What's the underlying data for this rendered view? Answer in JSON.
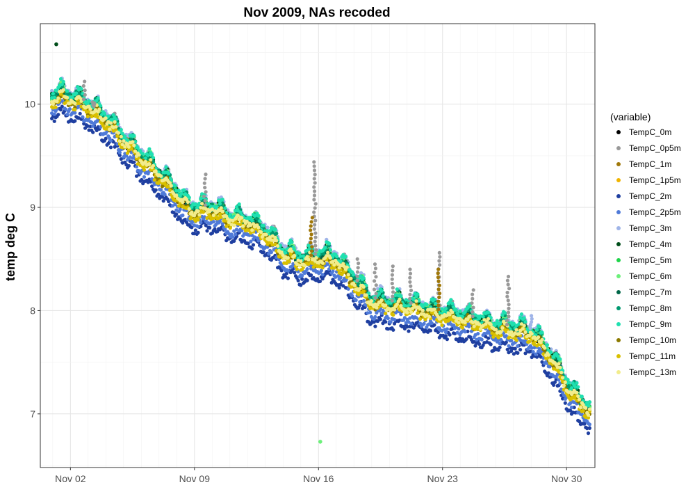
{
  "chart_data": {
    "type": "scatter",
    "title": "Nov 2009, NAs recoded",
    "xlabel": "",
    "ylabel": "temp deg C",
    "x_tick_labels": [
      "Nov 02",
      "Nov 09",
      "Nov 16",
      "Nov 23",
      "Nov 30"
    ],
    "x_tick_days": [
      2,
      9,
      16,
      23,
      30
    ],
    "xlim_days": [
      0.3,
      31.6
    ],
    "ylim": [
      6.48,
      10.78
    ],
    "y_ticks": [
      7,
      8,
      9,
      10
    ],
    "grid": true,
    "legend": {
      "title": "(variable)",
      "placement": "right"
    },
    "trend": {
      "days": [
        1.0,
        1.5,
        2.0,
        2.7,
        3.3,
        4.0,
        5.0,
        6.0,
        7.0,
        8.0,
        8.5,
        9.0,
        10.0,
        11.0,
        12.0,
        13.0,
        14.0,
        15.0,
        15.5,
        16.0,
        16.5,
        17.0,
        18.0,
        19.0,
        20.0,
        21.0,
        22.0,
        22.5,
        23.0,
        24.0,
        25.0,
        26.0,
        27.0,
        28.0,
        29.0,
        30.0,
        30.5,
        31.3
      ],
      "temp": [
        10.02,
        10.05,
        10.02,
        9.98,
        9.9,
        9.82,
        9.62,
        9.45,
        9.28,
        9.1,
        8.98,
        8.93,
        8.95,
        8.85,
        8.82,
        8.72,
        8.52,
        8.45,
        8.45,
        8.48,
        8.48,
        8.45,
        8.25,
        8.05,
        8.02,
        8.0,
        7.97,
        7.95,
        7.92,
        7.9,
        7.85,
        7.8,
        7.78,
        7.75,
        7.55,
        7.25,
        7.12,
        7.0
      ]
    },
    "series": [
      {
        "name": "TempC_0m",
        "color": "#000000",
        "offset": 0.02
      },
      {
        "name": "TempC_0p5m",
        "color": "#999999",
        "offset": 0.06
      },
      {
        "name": "TempC_1m",
        "color": "#a0780a",
        "offset": 0.04
      },
      {
        "name": "TempC_1p5m",
        "color": "#f0b400",
        "offset": 0.02
      },
      {
        "name": "TempC_2m",
        "color": "#1f3fa0",
        "offset": -0.17
      },
      {
        "name": "TempC_2p5m",
        "color": "#4f7ad8",
        "offset": -0.1
      },
      {
        "name": "TempC_3m",
        "color": "#9fb4e8",
        "offset": 0.08
      },
      {
        "name": "TempC_4m",
        "color": "#004d1a",
        "offset": 0.05
      },
      {
        "name": "TempC_5m",
        "color": "#1fd44a",
        "offset": 0.04
      },
      {
        "name": "TempC_6m",
        "color": "#6cf07a",
        "offset": 0.05
      },
      {
        "name": "TempC_7m",
        "color": "#006648",
        "offset": 0.03
      },
      {
        "name": "TempC_8m",
        "color": "#009970",
        "offset": 0.05
      },
      {
        "name": "TempC_9m",
        "color": "#1fe0b0",
        "offset": 0.07
      },
      {
        "name": "TempC_10m",
        "color": "#8c7a00",
        "offset": -0.01
      },
      {
        "name": "TempC_11m",
        "color": "#d9c000",
        "offset": -0.03
      },
      {
        "name": "TempC_13m",
        "color": "#f2ec8c",
        "offset": 0.01
      }
    ],
    "spikes": [
      {
        "series": "TempC_0p5m",
        "day": 2.8,
        "temp": 10.22
      },
      {
        "series": "TempC_0p5m",
        "day": 3.3,
        "temp": 10.02
      },
      {
        "series": "TempC_0p5m",
        "day": 9.6,
        "temp": 9.32
      },
      {
        "series": "TempC_0p5m",
        "day": 15.8,
        "temp": 9.44
      },
      {
        "series": "TempC_1m",
        "day": 15.6,
        "temp": 8.9
      },
      {
        "series": "TempC_0p5m",
        "day": 18.2,
        "temp": 8.5
      },
      {
        "series": "TempC_0p5m",
        "day": 19.2,
        "temp": 8.45
      },
      {
        "series": "TempC_0p5m",
        "day": 20.2,
        "temp": 8.43
      },
      {
        "series": "TempC_0p5m",
        "day": 21.2,
        "temp": 8.4
      },
      {
        "series": "TempC_0p5m",
        "day": 22.8,
        "temp": 8.56
      },
      {
        "series": "TempC_1m",
        "day": 22.8,
        "temp": 8.4
      },
      {
        "series": "TempC_0p5m",
        "day": 24.7,
        "temp": 8.2
      },
      {
        "series": "TempC_0p5m",
        "day": 26.7,
        "temp": 8.33
      },
      {
        "series": "TempC_3m",
        "day": 28.0,
        "temp": 7.95
      }
    ],
    "outliers": [
      {
        "series": "TempC_4m",
        "day": 1.2,
        "temp": 10.58
      },
      {
        "series": "TempC_6m",
        "day": 16.1,
        "temp": 6.73
      }
    ]
  }
}
